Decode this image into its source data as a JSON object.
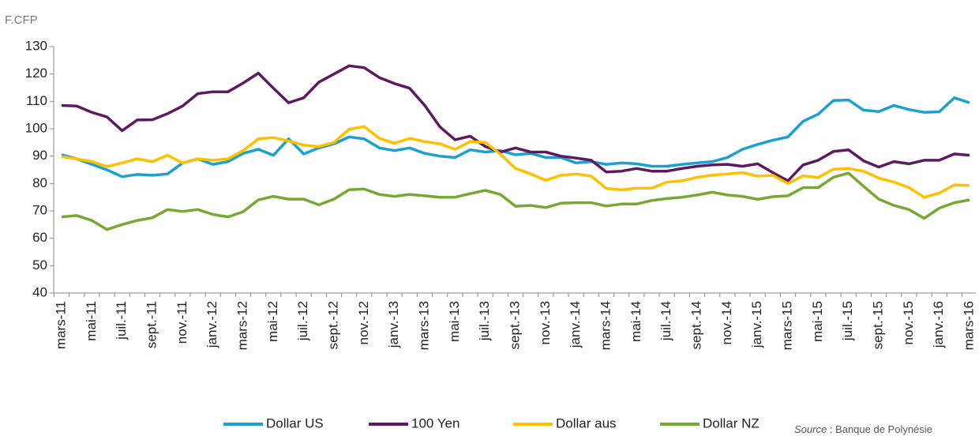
{
  "chart_data": {
    "type": "line",
    "y_label": "F.CFP",
    "categories": [
      "mars-11",
      null,
      "mai-11",
      null,
      "juil.-11",
      null,
      "sept.-11",
      null,
      "nov.-11",
      null,
      "janv.-12",
      null,
      "mars-12",
      null,
      "mai-12",
      null,
      "juil.-12",
      null,
      "sept.-12",
      null,
      "nov.-12",
      null,
      "janv.-13",
      null,
      "mars-13",
      null,
      "mai-13",
      null,
      "juil.-13",
      null,
      "sept.-13",
      null,
      "nov.-13",
      null,
      "janv.-14",
      null,
      "mars-14",
      null,
      "mai-14",
      null,
      "juil.-14",
      null,
      "sept.-14",
      null,
      "nov.-14",
      null,
      "janv.-15",
      null,
      "mars-15",
      null,
      "mai-15",
      null,
      "juil.-15",
      null,
      "sept.-15",
      null,
      "nov.-15",
      null,
      "janv.-16",
      null,
      "mars-16"
    ],
    "series": [
      {
        "name": "Dollar US",
        "color": "#1ba1cf",
        "values": [
          90.5,
          89,
          87,
          85,
          82.5,
          83.3,
          83,
          83.5,
          87.5,
          89,
          87,
          88,
          91,
          92.5,
          90.3,
          96.3,
          90.8,
          93,
          94.5,
          97,
          96.3,
          93,
          92,
          93,
          91,
          90,
          89.5,
          92.3,
          91.5,
          92,
          90.5,
          91,
          89.5,
          89.5,
          87.5,
          88,
          87,
          87.5,
          87.2,
          86.3,
          86.3,
          87,
          87.5,
          88,
          89.5,
          92.5,
          94.3,
          95.8,
          97,
          102.7,
          105.3,
          110.3,
          110.5,
          106.8,
          106.3,
          108.5,
          107,
          106,
          106.2,
          111.3,
          109.5
        ]
      },
      {
        "name": "100 Yen",
        "color": "#5e1a60",
        "values": [
          108.5,
          108.3,
          106,
          104.3,
          99.3,
          103.2,
          103.3,
          105.5,
          108.3,
          112.8,
          113.5,
          113.5,
          116.7,
          120.3,
          114.8,
          109.5,
          111.3,
          117,
          120,
          123,
          122.3,
          118.7,
          116.5,
          114.8,
          108.5,
          100.7,
          96,
          97.3,
          93.5,
          91.5,
          93,
          91.5,
          91.5,
          90,
          89.3,
          88.5,
          84.2,
          84.5,
          85.5,
          84.5,
          84.5,
          85.5,
          86.3,
          86.8,
          87,
          86.3,
          87.2,
          84,
          81,
          86.8,
          88.5,
          91.7,
          92.3,
          88.3,
          86,
          88,
          87.2,
          88.5,
          88.5,
          90.8,
          90.3
        ]
      },
      {
        "name": "Dollar aus",
        "color": "#ffc000",
        "values": [
          89.8,
          89,
          88,
          86.2,
          87.5,
          89,
          88,
          90.3,
          87.5,
          89,
          88.5,
          89,
          92,
          96.3,
          96.8,
          95.5,
          94,
          93.5,
          95,
          99.8,
          100.8,
          96.5,
          94.7,
          96.5,
          95.3,
          94.5,
          92.5,
          95.3,
          95,
          90.7,
          85.5,
          83.5,
          81.2,
          83,
          83.5,
          82.7,
          78.2,
          77.7,
          78.3,
          78.3,
          80.5,
          81,
          82.3,
          83,
          83.5,
          84,
          82.7,
          83,
          80,
          82.8,
          82.2,
          85.2,
          85.5,
          84.5,
          82,
          80.5,
          78.5,
          75,
          76.5,
          79.5,
          79.3
        ]
      },
      {
        "name": "Dollar NZ",
        "color": "#77a832",
        "values": [
          67.8,
          68.3,
          66.5,
          63.2,
          65,
          66.5,
          67.5,
          70.5,
          69.8,
          70.5,
          68.7,
          67.8,
          69.7,
          74,
          75.3,
          74.3,
          74.3,
          72.2,
          74.3,
          77.7,
          78,
          76,
          75.3,
          76,
          75.5,
          75,
          75,
          76.3,
          77.5,
          76,
          71.7,
          72,
          71.2,
          72.8,
          73,
          73,
          71.8,
          72.5,
          72.5,
          73.8,
          74.5,
          75,
          75.8,
          76.8,
          75.8,
          75.3,
          74.2,
          75.2,
          75.5,
          78.5,
          78.5,
          82.3,
          83.8,
          79,
          74.3,
          72,
          70.5,
          67.3,
          71,
          73,
          74
        ]
      }
    ],
    "ylim": [
      40,
      130
    ],
    "yticks": [
      40,
      50,
      60,
      70,
      80,
      90,
      100,
      110,
      120,
      130
    ],
    "grid": false,
    "legend": "bottom",
    "source": {
      "label": "Source",
      "text": " : Banque de Polynésie"
    }
  }
}
